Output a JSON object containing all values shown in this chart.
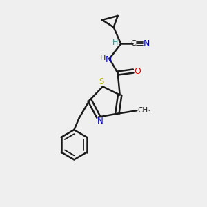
{
  "background_color": "#efefef",
  "bond_color": "#1a1a1a",
  "sulfur_color": "#b8b800",
  "nitrogen_color": "#0000ee",
  "oxygen_color": "#ee0000",
  "ch_color": "#2e8b8b",
  "figsize": [
    3.0,
    3.0
  ],
  "dpi": 100,
  "xlim": [
    0,
    10
  ],
  "ylim": [
    0,
    10
  ]
}
